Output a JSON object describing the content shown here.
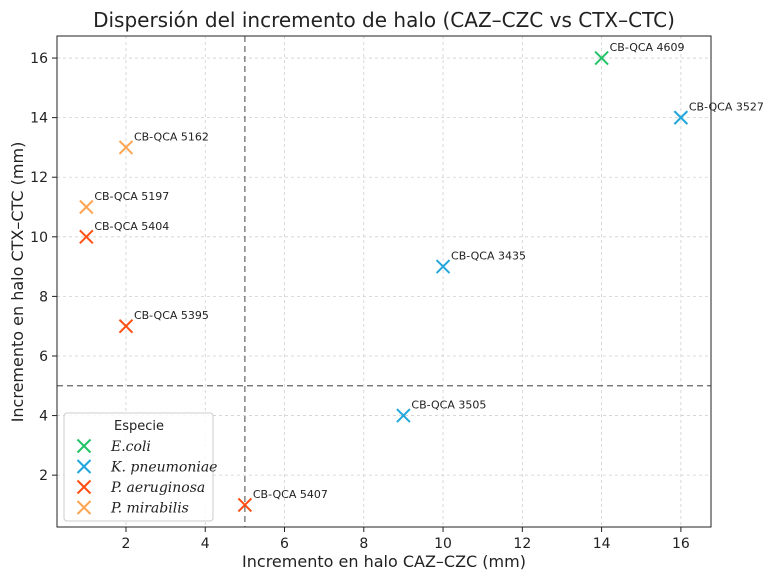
{
  "chart_data": {
    "type": "scatter",
    "title": "Dispersión del incremento de halo (CAZ–CZC vs CTX–CTC)",
    "xlabel": "Incremento en halo CAZ–CZC (mm)",
    "ylabel": "Incremento en halo CTX–CTC (mm)",
    "xlim": [
      0.26,
      16.76
    ],
    "ylim": [
      0.26,
      16.74
    ],
    "xticks": [
      2,
      4,
      6,
      8,
      10,
      12,
      14,
      16
    ],
    "yticks": [
      2,
      4,
      6,
      8,
      10,
      12,
      14,
      16
    ],
    "grid": true,
    "reference_lines": {
      "x": 5,
      "y": 5
    },
    "legend": {
      "title": "Especie",
      "placement": "bottom-left"
    },
    "series": [
      {
        "name": "E.coli",
        "color": "#22c468",
        "points": [
          {
            "x": 14,
            "y": 16,
            "label": "CB-QCA 4609"
          }
        ]
      },
      {
        "name": "K. pneumoniae",
        "color": "#22a7dc",
        "points": [
          {
            "x": 16,
            "y": 14,
            "label": "CB-QCA 3527"
          },
          {
            "x": 10,
            "y": 9,
            "label": "CB-QCA 3435"
          },
          {
            "x": 9,
            "y": 4,
            "label": "CB-QCA 3505"
          }
        ]
      },
      {
        "name": "P. aeruginosa",
        "color": "#ff4f12",
        "points": [
          {
            "x": 1,
            "y": 10,
            "label": "CB-QCA 5404"
          },
          {
            "x": 2,
            "y": 7,
            "label": "CB-QCA 5395"
          },
          {
            "x": 5,
            "y": 1,
            "label": "CB-QCA 5407"
          }
        ]
      },
      {
        "name": "P. mirabilis",
        "color": "#ffa552",
        "points": [
          {
            "x": 2,
            "y": 13,
            "label": "CB-QCA 5162"
          },
          {
            "x": 1,
            "y": 11,
            "label": "CB-QCA 5197"
          }
        ]
      }
    ]
  }
}
